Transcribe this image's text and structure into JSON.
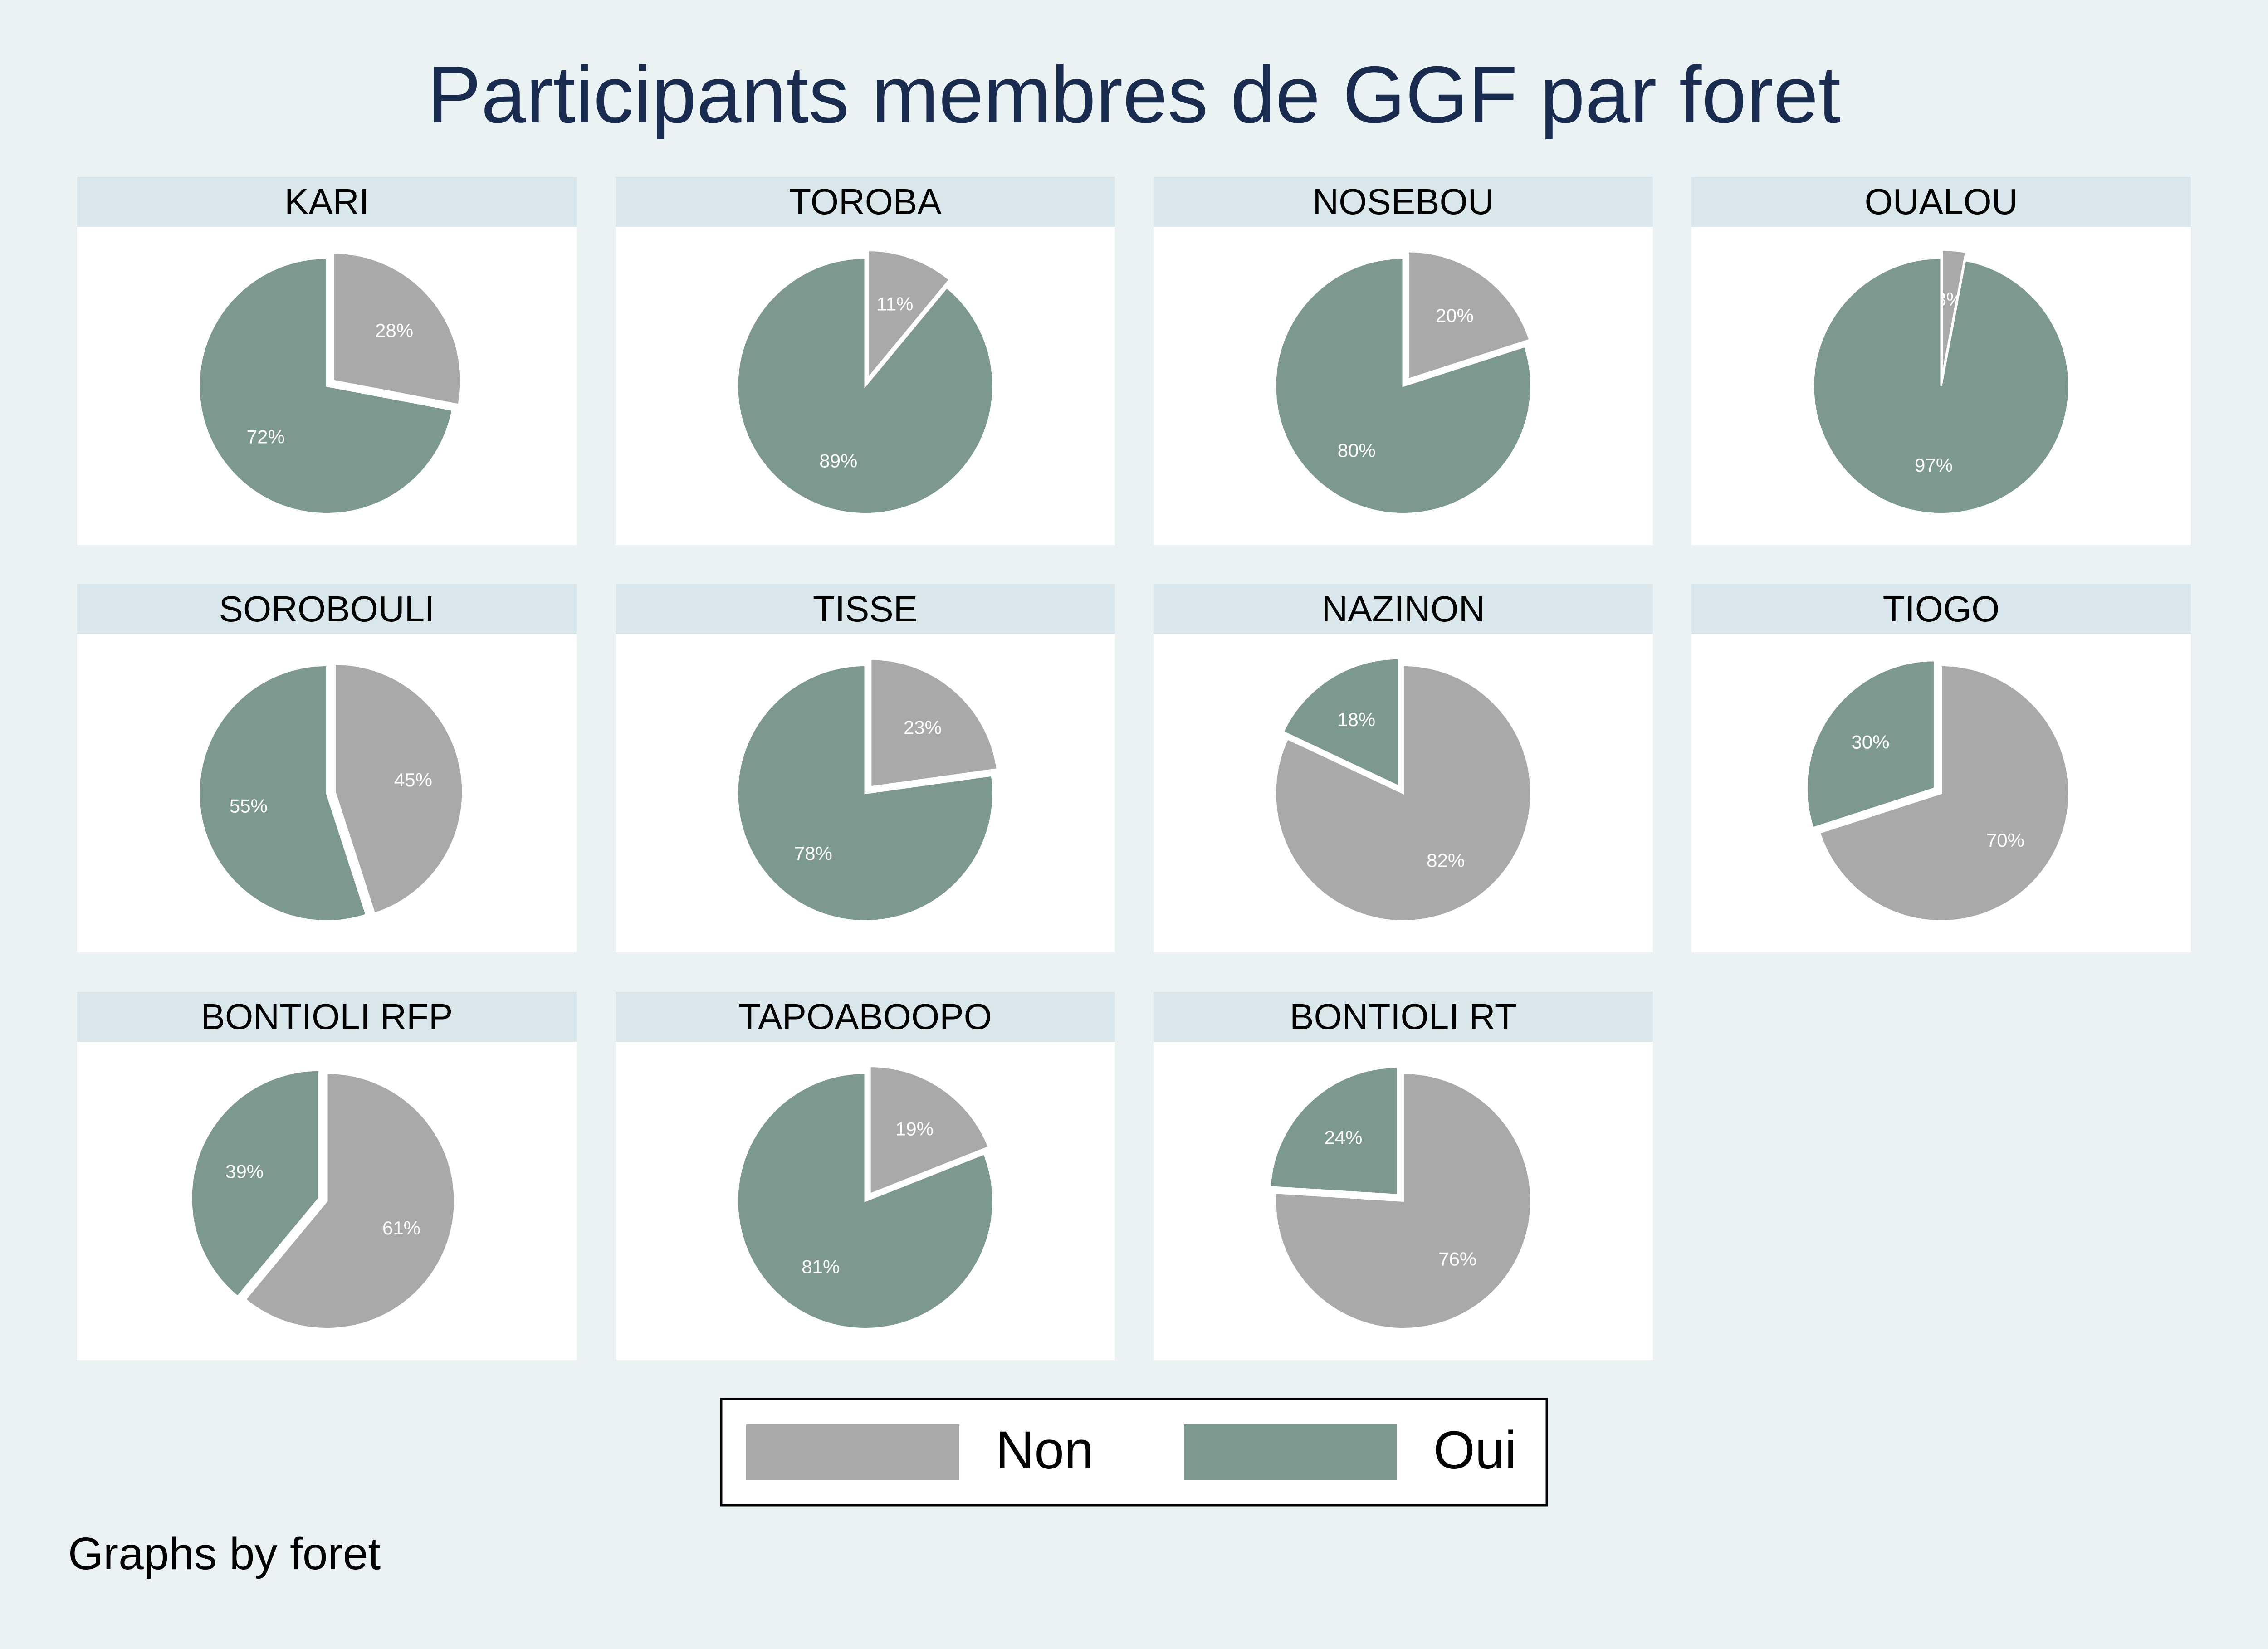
{
  "chart_data": {
    "type": "pie",
    "title": "Participants membres de GGF par foret",
    "note": "Graphs by foret",
    "legend": [
      {
        "label": "Non",
        "color": "#a9a9a9"
      },
      {
        "label": "Oui",
        "color": "#7d998e"
      }
    ],
    "panels": [
      {
        "name": "KARI",
        "non": 28,
        "oui": 72,
        "explode": "non"
      },
      {
        "name": "TOROBA",
        "non": 11,
        "oui": 89,
        "explode": "non"
      },
      {
        "name": "NOSEBOU",
        "non": 20,
        "oui": 80,
        "explode": "non"
      },
      {
        "name": "OUALOU",
        "non": 3,
        "oui": 97,
        "explode": "non"
      },
      {
        "name": "SOROBOULI",
        "non": 45,
        "oui": 55,
        "explode": "non"
      },
      {
        "name": "TISSE",
        "non": 23,
        "oui": 78,
        "explode": "non"
      },
      {
        "name": "NAZINON",
        "non": 82,
        "oui": 18,
        "explode": "oui"
      },
      {
        "name": "TIOGO",
        "non": 70,
        "oui": 30,
        "explode": "oui"
      },
      {
        "name": "BONTIOLI RFP",
        "non": 61,
        "oui": 39,
        "explode": "oui"
      },
      {
        "name": "TAPOABOOPO",
        "non": 19,
        "oui": 81,
        "explode": "non"
      },
      {
        "name": "BONTIOLI RT",
        "non": 76,
        "oui": 24,
        "explode": "oui"
      }
    ]
  }
}
